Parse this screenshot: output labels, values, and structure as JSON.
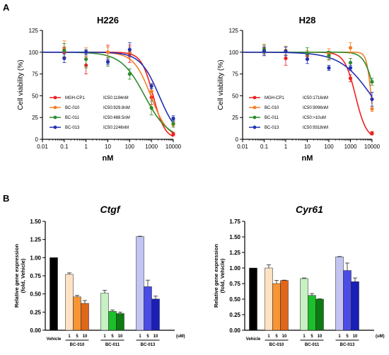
{
  "panels": {
    "a": "A",
    "b": "B"
  },
  "chart_data": [
    {
      "type": "line",
      "title": "H226",
      "xlabel": "nM",
      "ylabel": "Cell viability (%)",
      "xscale": "log",
      "xlim": [
        0.01,
        10000
      ],
      "ylim": [
        0,
        125
      ],
      "xticks": [
        "0.01",
        "0.1",
        "1",
        "10",
        "100",
        "1000",
        "10000"
      ],
      "yticks": [
        "0",
        "25",
        "50",
        "75",
        "100",
        "125"
      ],
      "x": [
        0.1,
        1,
        10,
        100,
        1000,
        10000
      ],
      "series": [
        {
          "name": "MGH-CP1",
          "ic50": "IC50:1194nM",
          "ic50_val": 1194,
          "hill": 1.6,
          "color": "#ef1f1f",
          "values": [
            100,
            85,
            100,
            98,
            48,
            6
          ],
          "err": [
            6,
            10,
            8,
            10,
            8,
            2
          ]
        },
        {
          "name": "BC-010",
          "ic50": "IC50:929.8nM",
          "ic50_val": 929.8,
          "hill": 1.1,
          "color": "#f57f27",
          "values": [
            104,
            100,
            100,
            100,
            55,
            17
          ],
          "err": [
            9,
            5,
            6,
            6,
            8,
            3
          ]
        },
        {
          "name": "BC-011",
          "ic50": "IC50:488.5nM",
          "ic50_val": 488.5,
          "hill": 0.8,
          "color": "#2e8b2e",
          "values": [
            102,
            92,
            89,
            75,
            36,
            18
          ],
          "err": [
            8,
            10,
            5,
            6,
            8,
            4
          ]
        },
        {
          "name": "BC-013",
          "ic50": "IC50:2246nM",
          "ic50_val": 2246,
          "hill": 1.0,
          "color": "#2231b4",
          "values": [
            93,
            100,
            89,
            103,
            61,
            24
          ],
          "err": [
            5,
            3,
            3,
            8,
            3,
            3
          ]
        }
      ]
    },
    {
      "type": "line",
      "title": "H28",
      "xlabel": "nM",
      "ylabel": "Cell viability (%)",
      "xscale": "log",
      "xlim": [
        0.01,
        10000
      ],
      "ylim": [
        0,
        125
      ],
      "xticks": [
        "0.01",
        "0.1",
        "1",
        "10",
        "100",
        "1000",
        "10000"
      ],
      "yticks": [
        "0",
        "25",
        "50",
        "75",
        "100",
        "125"
      ],
      "x": [
        0.1,
        1,
        10,
        100,
        1000,
        10000
      ],
      "series": [
        {
          "name": "MGH-CP1",
          "ic50": "IC50:1716nM",
          "ic50_val": 1716,
          "hill": 1.7,
          "color": "#ef1f1f",
          "values": [
            101,
            93,
            96,
            96,
            70,
            7
          ],
          "err": [
            5,
            8,
            4,
            5,
            4,
            2
          ]
        },
        {
          "name": "BC-010",
          "ic50": "IC50:9096nM",
          "ic50_val": 9096,
          "hill": 4,
          "color": "#f57f27",
          "values": [
            104,
            102,
            97,
            98,
            105,
            35
          ],
          "err": [
            5,
            5,
            5,
            6,
            6,
            3
          ]
        },
        {
          "name": "BC-011",
          "ic50": "IC50:>10uM",
          "ic50_val": 14000,
          "hill": 1.8,
          "color": "#2e8b2e",
          "values": [
            103,
            101,
            99,
            96,
            88,
            66
          ],
          "err": [
            5,
            5,
            6,
            5,
            5,
            4
          ]
        },
        {
          "name": "BC-013",
          "ic50": "IC50:9318nM",
          "ic50_val": 9318,
          "hill": 0.6,
          "color": "#2231b4",
          "values": [
            101,
            101,
            92,
            82,
            82,
            46
          ],
          "err": [
            5,
            5,
            5,
            3,
            3,
            8
          ]
        }
      ]
    },
    {
      "type": "bar",
      "title": "Ctgf",
      "ylabel": "Relative gene expression\n(fold, Vehicle)",
      "ylim": [
        0,
        1.5
      ],
      "yticks": [
        "0.00",
        "0.25",
        "0.50",
        "0.75",
        "1.00",
        "1.25",
        "1.50"
      ],
      "unit": "(uM)",
      "vehicle_label": "Vehicle",
      "groups": [
        {
          "name": "BC-010",
          "doses": [
            "1",
            "5",
            "10"
          ],
          "values": [
            0.77,
            0.46,
            0.37
          ],
          "err": [
            0.02,
            0.02,
            0.04
          ],
          "colors": [
            "#fde2c4",
            "#f79535",
            "#e0661a"
          ]
        },
        {
          "name": "BC-011",
          "doses": [
            "1",
            "5",
            "10"
          ],
          "values": [
            0.51,
            0.26,
            0.23
          ],
          "err": [
            0.04,
            0.02,
            0.02
          ],
          "colors": [
            "#c7f0c3",
            "#1dbf2d",
            "#0e7a12"
          ]
        },
        {
          "name": "BC-013",
          "doses": [
            "1",
            "5",
            "10"
          ],
          "values": [
            1.29,
            0.6,
            0.43
          ],
          "err": [
            0.005,
            0.09,
            0.04
          ],
          "colors": [
            "#c3c4f2",
            "#4b4ce6",
            "#1a1fb5"
          ]
        }
      ],
      "vehicle": {
        "value": 1.0,
        "color": "#000000"
      }
    },
    {
      "type": "bar",
      "title": "Cyr61",
      "ylabel": "Relative gene expression\n(fold, Vehicle)",
      "ylim": [
        0,
        1.75
      ],
      "yticks": [
        "0.00",
        "0.25",
        "0.50",
        "0.75",
        "1.00",
        "1.25",
        "1.50",
        "1.75"
      ],
      "unit": "(uM)",
      "vehicle_label": "Vehicle",
      "groups": [
        {
          "name": "BC-010",
          "doses": [
            "1",
            "5",
            "10"
          ],
          "values": [
            1.0,
            0.75,
            0.8
          ],
          "err": [
            0.05,
            0.05,
            0.005
          ],
          "colors": [
            "#fde2c4",
            "#f79535",
            "#e0661a"
          ]
        },
        {
          "name": "BC-011",
          "doses": [
            "1",
            "5",
            "10"
          ],
          "values": [
            0.83,
            0.56,
            0.5
          ],
          "err": [
            0.01,
            0.03,
            0.005
          ],
          "colors": [
            "#c7f0c3",
            "#1dbf2d",
            "#0e7a12"
          ]
        },
        {
          "name": "BC-013",
          "doses": [
            "1",
            "5",
            "10"
          ],
          "values": [
            1.18,
            0.96,
            0.78
          ],
          "err": [
            0.005,
            0.12,
            0.06
          ],
          "colors": [
            "#c3c4f2",
            "#4b4ce6",
            "#1a1fb5"
          ]
        }
      ],
      "vehicle": {
        "value": 1.0,
        "color": "#000000"
      }
    }
  ]
}
